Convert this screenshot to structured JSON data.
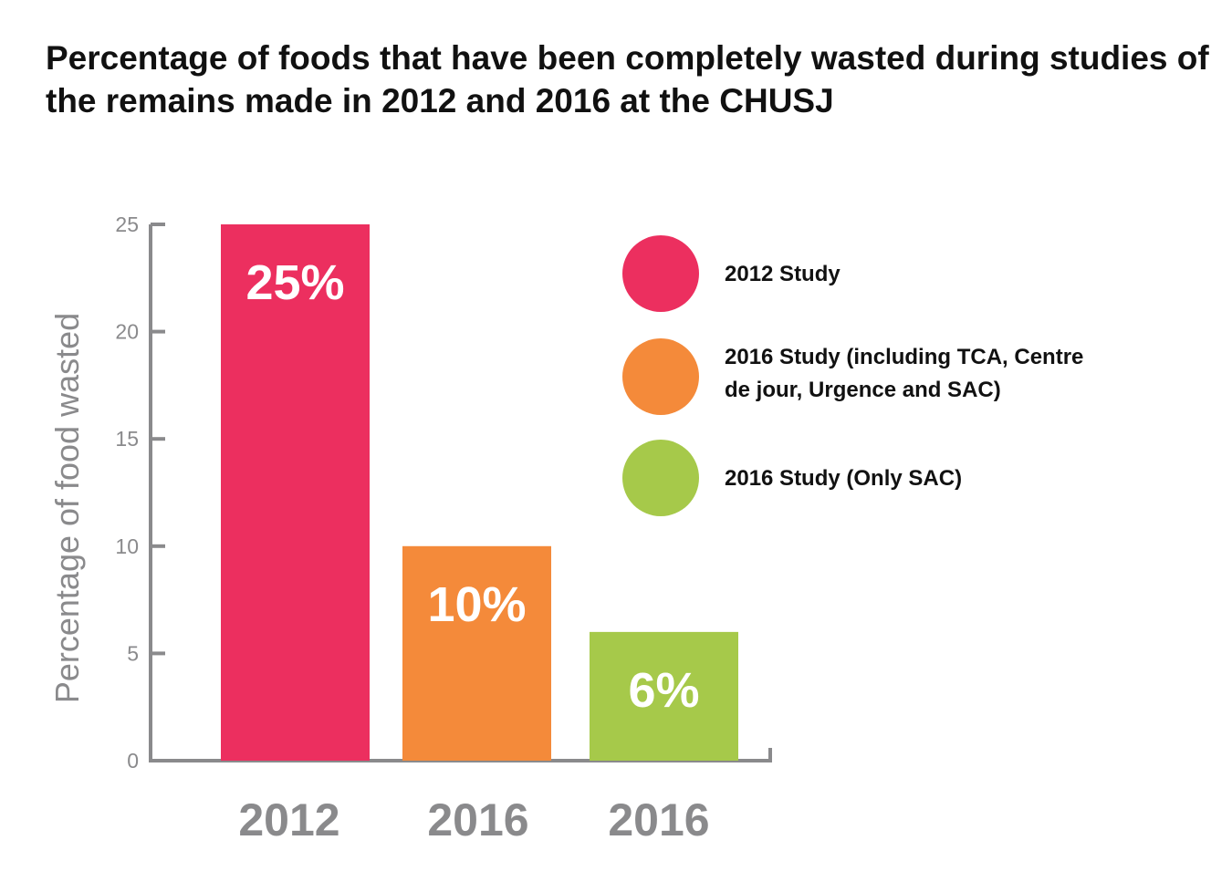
{
  "chart_data": {
    "type": "bar",
    "title": "Percentage of foods that have been completely wasted during studies of the remains made in 2012 and 2016 at the CHUSJ",
    "ylabel": "Percentage of food wasted",
    "xlabel": "",
    "ylim": [
      0,
      25
    ],
    "yticks": [
      "0",
      "5",
      "10",
      "15",
      "20",
      "25"
    ],
    "categories": [
      "2012",
      "2016",
      "2016"
    ],
    "values": [
      25,
      10,
      6
    ],
    "data_labels": [
      "25%",
      "10%",
      "6%"
    ],
    "colors": [
      "#ec2f5f",
      "#f48a3a",
      "#a6c94a"
    ],
    "grid": false,
    "legend_position": "right",
    "legend": [
      {
        "label_lines": [
          "2012 Study"
        ],
        "color": "#ec2f5f"
      },
      {
        "label_lines": [
          "2016 Study (including TCA, Centre",
          "de jour, Urgence and SAC)"
        ],
        "color": "#f48a3a"
      },
      {
        "label_lines": [
          "2016 Study (Only SAC)"
        ],
        "color": "#a6c94a"
      }
    ],
    "axis_color": "#8a8a8c"
  }
}
